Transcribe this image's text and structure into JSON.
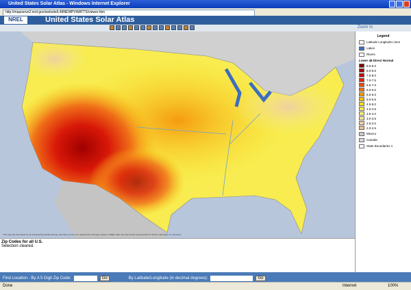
{
  "window": {
    "title": "United States Solar Atlas - Windows Internet Explorer",
    "address": "http://mapserve2.nrel.gov/website/L48NEWPVWATTS/viewer.htm"
  },
  "header": {
    "logo": "NREL",
    "title": "United States Solar Atlas",
    "zoom_mode": "Zoom In"
  },
  "legend": {
    "title": "Legend",
    "layers": [
      "Latitude Longitude Lines",
      "Lakes",
      "Rivers",
      "Lower 48 Direct Normal"
    ],
    "classes": [
      {
        "label": "8.5-9.0",
        "color": "#7a0000"
      },
      {
        "label": "8.0-8.5",
        "color": "#a00000"
      },
      {
        "label": "7.5-8.0",
        "color": "#c80000"
      },
      {
        "label": "7.0-7.5",
        "color": "#e02010"
      },
      {
        "label": "6.5-7.0",
        "color": "#ee4a10"
      },
      {
        "label": "6.0-6.5",
        "color": "#f07018"
      },
      {
        "label": "5.5-6.0",
        "color": "#f59a10"
      },
      {
        "label": "5.0-5.5",
        "color": "#f8bf10"
      },
      {
        "label": "4.5-5.0",
        "color": "#fadc20"
      },
      {
        "label": "4.0-4.5",
        "color": "#f8ec50"
      },
      {
        "label": "3.5-4.0",
        "color": "#f4f080"
      },
      {
        "label": "3.0-3.5",
        "color": "#f2e4a0"
      },
      {
        "label": "2.5-3.0",
        "color": "#f0d0a0"
      },
      {
        "label": "2.0-2.5",
        "color": "#e8c090"
      }
    ],
    "extra": [
      {
        "label": "Mexico",
        "color": "#c8c8c8"
      },
      {
        "label": "Canada",
        "color": "#d8d8d8"
      },
      {
        "label": "State Boundaries 1",
        "color": "#ffffff"
      }
    ]
  },
  "map": {
    "credit": "This map was developed by the National Renewable Energy Laboratory for the U.S. Department of Energy, based on NREL data. See http://rredc.nrel.gov/solar/ for further information on resources."
  },
  "info": {
    "layer": "Zip Codes for all U.S.",
    "status": "Selection cleared."
  },
  "find": {
    "zip_label": "Find Location - By A 5 Digit Zip Code:",
    "go": "Go",
    "latlon_label": "By Latitude/Longitude (in decimal degrees):"
  },
  "statusbar": {
    "left": "Done",
    "zone": "Internet",
    "zoom": "100%"
  }
}
